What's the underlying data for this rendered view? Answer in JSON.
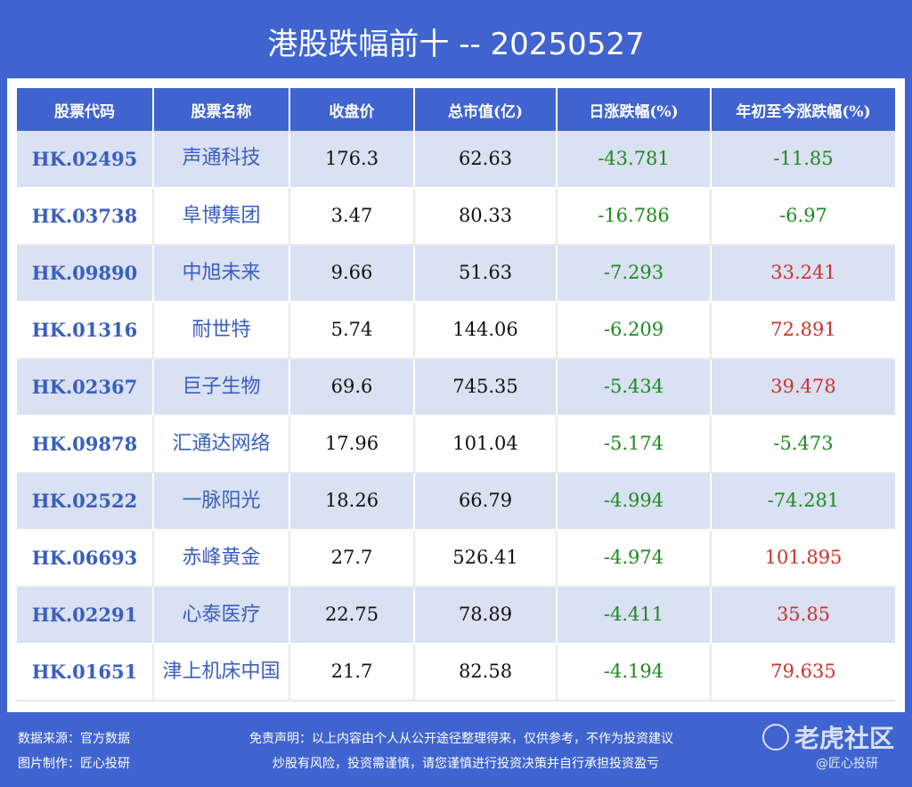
{
  "title": "港股跌幅前十 -- 20250527",
  "table": {
    "headers": [
      "股票代码",
      "股票名称",
      "收盘价",
      "总市值(亿)",
      "日涨跌幅(%)",
      "年初至今涨跌幅(%)"
    ],
    "rows": [
      {
        "code": "HK.02495",
        "name": "声通科技",
        "close": "176.3",
        "cap": "62.63",
        "day": "-43.781",
        "ytd": "-11.85"
      },
      {
        "code": "HK.03738",
        "name": "阜博集团",
        "close": "3.47",
        "cap": "80.33",
        "day": "-16.786",
        "ytd": "-6.97"
      },
      {
        "code": "HK.09890",
        "name": "中旭未来",
        "close": "9.66",
        "cap": "51.63",
        "day": "-7.293",
        "ytd": "33.241"
      },
      {
        "code": "HK.01316",
        "name": "耐世特",
        "close": "5.74",
        "cap": "144.06",
        "day": "-6.209",
        "ytd": "72.891"
      },
      {
        "code": "HK.02367",
        "name": "巨子生物",
        "close": "69.6",
        "cap": "745.35",
        "day": "-5.434",
        "ytd": "39.478"
      },
      {
        "code": "HK.09878",
        "name": "汇通达网络",
        "close": "17.96",
        "cap": "101.04",
        "day": "-5.174",
        "ytd": "-5.473"
      },
      {
        "code": "HK.02522",
        "name": "一脉阳光",
        "close": "18.26",
        "cap": "66.79",
        "day": "-4.994",
        "ytd": "-74.281"
      },
      {
        "code": "HK.06693",
        "name": "赤峰黄金",
        "close": "27.7",
        "cap": "526.41",
        "day": "-4.974",
        "ytd": "101.895"
      },
      {
        "code": "HK.02291",
        "name": "心泰医疗",
        "close": "22.75",
        "cap": "78.89",
        "day": "-4.411",
        "ytd": "35.85"
      },
      {
        "code": "HK.01651",
        "name": "津上机床中国",
        "close": "21.7",
        "cap": "82.58",
        "day": "-4.194",
        "ytd": "79.635"
      }
    ]
  },
  "footer": {
    "source": "数据来源：官方数据",
    "maker": "图片制作：匠心投研",
    "disclaimer1": "免责声明：以上内容由个人从公开途径整理得来，仅供参考，不作为投资建议",
    "disclaimer2": "炒股有风险，投资需谨慎，请您谨慎进行投资决策并自行承担投资盈亏",
    "watermark1": "老虎社区",
    "watermark2": "@匠心投研"
  },
  "colors": {
    "background": "#4064cf",
    "row_alt": "#d9e1f2",
    "negative": "#1f8a1f",
    "positive": "#d0302b",
    "code_text": "#3a5ec0"
  }
}
